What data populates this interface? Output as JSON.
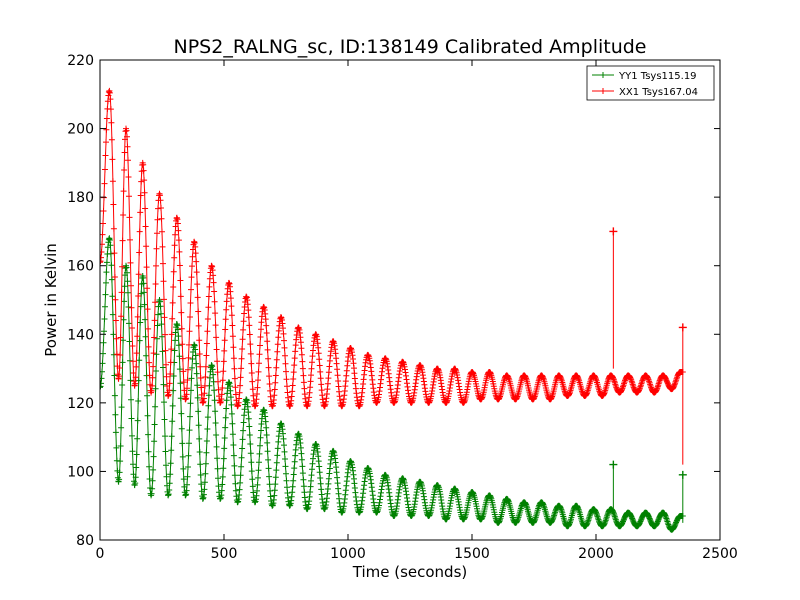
{
  "chart_data": {
    "type": "line",
    "title": "NPS2_RALNG_sc, ID:138149 Calibrated Amplitude",
    "xlabel": "Time (seconds)",
    "ylabel": "Power in Kelvin",
    "xlim": [
      0,
      2500
    ],
    "ylim": [
      80,
      220
    ],
    "xticks": [
      0,
      500,
      1000,
      1500,
      2000,
      2500
    ],
    "yticks": [
      80,
      100,
      120,
      140,
      160,
      180,
      200,
      220
    ],
    "grid": false,
    "legend_position": "top-right",
    "marker": "+",
    "sample_interval_seconds": 2,
    "x_max": 2350,
    "series": [
      {
        "name": "YY1 Tsys115.19",
        "color": "#008000",
        "peaks": [
          [
            38,
            168
          ],
          [
            105,
            160
          ],
          [
            172,
            157
          ],
          [
            240,
            150
          ],
          [
            310,
            143
          ],
          [
            380,
            137
          ],
          [
            450,
            131
          ],
          [
            520,
            126
          ],
          [
            590,
            121
          ],
          [
            660,
            118
          ],
          [
            730,
            114
          ],
          [
            800,
            111
          ],
          [
            870,
            108
          ],
          [
            940,
            106
          ],
          [
            1010,
            103
          ],
          [
            1080,
            101
          ],
          [
            1150,
            99
          ],
          [
            1220,
            98
          ],
          [
            1290,
            97
          ],
          [
            1360,
            96
          ],
          [
            1430,
            95
          ],
          [
            1500,
            94
          ],
          [
            1570,
            93
          ],
          [
            1640,
            92
          ],
          [
            1710,
            91
          ],
          [
            1780,
            91
          ],
          [
            1850,
            90
          ],
          [
            1920,
            90
          ],
          [
            1990,
            89
          ],
          [
            2060,
            89
          ],
          [
            2130,
            88
          ],
          [
            2200,
            88
          ],
          [
            2270,
            88
          ],
          [
            2340,
            87
          ]
        ],
        "troughs": [
          [
            75,
            97
          ],
          [
            140,
            96
          ],
          [
            206,
            93
          ],
          [
            275,
            93
          ],
          [
            345,
            93
          ],
          [
            415,
            92
          ],
          [
            485,
            92
          ],
          [
            555,
            91
          ],
          [
            625,
            91
          ],
          [
            695,
            90
          ],
          [
            765,
            90
          ],
          [
            835,
            89
          ],
          [
            905,
            89
          ],
          [
            975,
            88
          ],
          [
            1045,
            88
          ],
          [
            1115,
            88
          ],
          [
            1185,
            87
          ],
          [
            1255,
            87
          ],
          [
            1325,
            87
          ],
          [
            1395,
            86
          ],
          [
            1465,
            86
          ],
          [
            1535,
            86
          ],
          [
            1605,
            85
          ],
          [
            1675,
            85
          ],
          [
            1745,
            85
          ],
          [
            1815,
            85
          ],
          [
            1885,
            84
          ],
          [
            1955,
            84
          ],
          [
            2025,
            84
          ],
          [
            2095,
            84
          ],
          [
            2165,
            84
          ],
          [
            2235,
            84
          ],
          [
            2305,
            83
          ]
        ],
        "spikes": [
          [
            2070,
            102
          ],
          [
            2350,
            99
          ]
        ]
      },
      {
        "name": "XX1 Tsys167.04",
        "color": "#ff0000",
        "peaks": [
          [
            38,
            211
          ],
          [
            105,
            200
          ],
          [
            172,
            190
          ],
          [
            240,
            181
          ],
          [
            310,
            174
          ],
          [
            380,
            167
          ],
          [
            450,
            160
          ],
          [
            520,
            155
          ],
          [
            590,
            151
          ],
          [
            660,
            148
          ],
          [
            730,
            145
          ],
          [
            800,
            142
          ],
          [
            870,
            140
          ],
          [
            940,
            138
          ],
          [
            1010,
            136
          ],
          [
            1080,
            134
          ],
          [
            1150,
            133
          ],
          [
            1220,
            132
          ],
          [
            1290,
            131
          ],
          [
            1360,
            130
          ],
          [
            1430,
            130
          ],
          [
            1500,
            129
          ],
          [
            1570,
            129
          ],
          [
            1640,
            128
          ],
          [
            1710,
            128
          ],
          [
            1780,
            128
          ],
          [
            1850,
            128
          ],
          [
            1920,
            128
          ],
          [
            1990,
            128
          ],
          [
            2060,
            128
          ],
          [
            2130,
            128
          ],
          [
            2200,
            128
          ],
          [
            2270,
            128
          ],
          [
            2340,
            129
          ]
        ],
        "troughs": [
          [
            75,
            127
          ],
          [
            140,
            125
          ],
          [
            206,
            123
          ],
          [
            275,
            122
          ],
          [
            345,
            121
          ],
          [
            415,
            120
          ],
          [
            485,
            120
          ],
          [
            555,
            119
          ],
          [
            625,
            119
          ],
          [
            695,
            119
          ],
          [
            765,
            119
          ],
          [
            835,
            119
          ],
          [
            905,
            119
          ],
          [
            975,
            119
          ],
          [
            1045,
            119
          ],
          [
            1115,
            120
          ],
          [
            1185,
            120
          ],
          [
            1255,
            120
          ],
          [
            1325,
            120
          ],
          [
            1395,
            120
          ],
          [
            1465,
            120
          ],
          [
            1535,
            121
          ],
          [
            1605,
            121
          ],
          [
            1675,
            121
          ],
          [
            1745,
            121
          ],
          [
            1815,
            121
          ],
          [
            1885,
            122
          ],
          [
            1955,
            122
          ],
          [
            2025,
            122
          ],
          [
            2095,
            123
          ],
          [
            2165,
            123
          ],
          [
            2235,
            123
          ],
          [
            2305,
            124
          ]
        ],
        "spikes": [
          [
            2070,
            170
          ],
          [
            2350,
            142
          ]
        ]
      }
    ]
  }
}
